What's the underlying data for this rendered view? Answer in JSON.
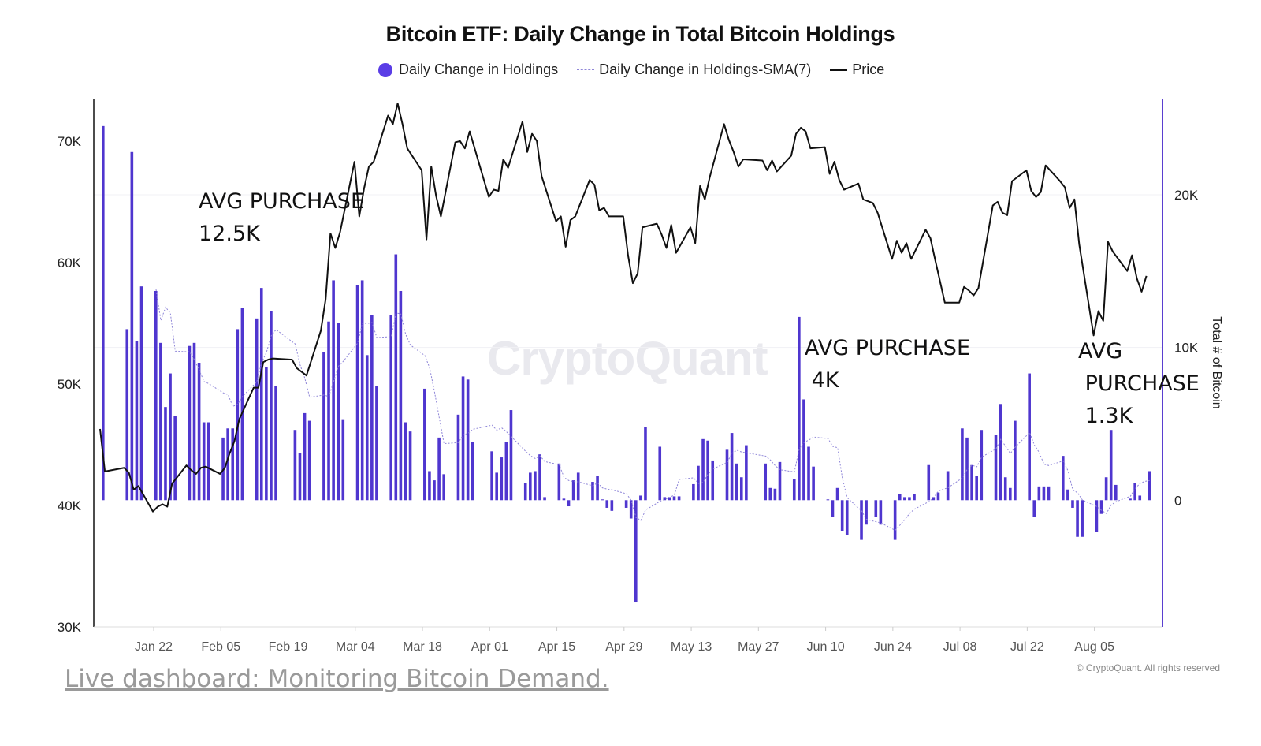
{
  "chart_data": {
    "type": "bar+line",
    "title": "Bitcoin ETF: Daily Change in Total Bitcoin Holdings",
    "legend": [
      "Daily Change in Holdings",
      "Daily Change in Holdings-SMA(7)",
      "Price"
    ],
    "legend_placement": "top-center",
    "right_axis_label": "Total # of Bitcoin",
    "watermark": "CryptoQuant",
    "copyright": "© CryptoQuant. All rights reserved",
    "colors": {
      "holdings": "#4f36cf",
      "sma": "#8f86d8",
      "price": "#111111",
      "right_axis": "#5a3fd0"
    },
    "left_axis": {
      "ylim": [
        30000,
        73500
      ],
      "ticks": [
        {
          "v": 30000,
          "label": "30K"
        },
        {
          "v": 40000,
          "label": "40K"
        },
        {
          "v": 50000,
          "label": "50K"
        },
        {
          "v": 60000,
          "label": "60K"
        },
        {
          "v": 70000,
          "label": "70K"
        }
      ]
    },
    "right_axis": {
      "ylim": [
        -8300,
        26300
      ],
      "ticks": [
        {
          "v": 0,
          "label": "0"
        },
        {
          "v": 10000,
          "label": "10K"
        },
        {
          "v": 20000,
          "label": "20K"
        }
      ]
    },
    "x_ticks": [
      {
        "label": "Jan 22",
        "date": "2024-01-22"
      },
      {
        "label": "Feb 05",
        "date": "2024-02-05"
      },
      {
        "label": "Feb 19",
        "date": "2024-02-19"
      },
      {
        "label": "Mar 04",
        "date": "2024-03-04"
      },
      {
        "label": "Mar 18",
        "date": "2024-03-18"
      },
      {
        "label": "Apr 01",
        "date": "2024-04-01"
      },
      {
        "label": "Apr 15",
        "date": "2024-04-15"
      },
      {
        "label": "Apr 29",
        "date": "2024-04-29"
      },
      {
        "label": "May 13",
        "date": "2024-05-13"
      },
      {
        "label": "May 27",
        "date": "2024-05-27"
      },
      {
        "label": "Jun 10",
        "date": "2024-06-10"
      },
      {
        "label": "Jun 24",
        "date": "2024-06-24"
      },
      {
        "label": "Jul 08",
        "date": "2024-07-08"
      },
      {
        "label": "Jul 22",
        "date": "2024-07-22"
      },
      {
        "label": "Aug 05",
        "date": "2024-08-05"
      }
    ],
    "dates": [
      "2024-01-11",
      "2024-01-12",
      "2024-01-16",
      "2024-01-17",
      "2024-01-18",
      "2024-01-19",
      "2024-01-22",
      "2024-01-23",
      "2024-01-24",
      "2024-01-25",
      "2024-01-26",
      "2024-01-29",
      "2024-01-30",
      "2024-01-31",
      "2024-02-01",
      "2024-02-02",
      "2024-02-05",
      "2024-02-06",
      "2024-02-07",
      "2024-02-08",
      "2024-02-09",
      "2024-02-12",
      "2024-02-13",
      "2024-02-14",
      "2024-02-15",
      "2024-02-16",
      "2024-02-20",
      "2024-02-21",
      "2024-02-22",
      "2024-02-23",
      "2024-02-26",
      "2024-02-27",
      "2024-02-28",
      "2024-02-29",
      "2024-03-01",
      "2024-03-04",
      "2024-03-05",
      "2024-03-06",
      "2024-03-07",
      "2024-03-08",
      "2024-03-11",
      "2024-03-12",
      "2024-03-13",
      "2024-03-14",
      "2024-03-15",
      "2024-03-18",
      "2024-03-19",
      "2024-03-20",
      "2024-03-21",
      "2024-03-22",
      "2024-03-25",
      "2024-03-26",
      "2024-03-27",
      "2024-03-28",
      "2024-04-01",
      "2024-04-02",
      "2024-04-03",
      "2024-04-04",
      "2024-04-05",
      "2024-04-08",
      "2024-04-09",
      "2024-04-10",
      "2024-04-11",
      "2024-04-12",
      "2024-04-15",
      "2024-04-16",
      "2024-04-17",
      "2024-04-18",
      "2024-04-19",
      "2024-04-22",
      "2024-04-23",
      "2024-04-24",
      "2024-04-25",
      "2024-04-26",
      "2024-04-29",
      "2024-04-30",
      "2024-05-01",
      "2024-05-02",
      "2024-05-03",
      "2024-05-06",
      "2024-05-07",
      "2024-05-08",
      "2024-05-09",
      "2024-05-10",
      "2024-05-13",
      "2024-05-14",
      "2024-05-15",
      "2024-05-16",
      "2024-05-17",
      "2024-05-20",
      "2024-05-21",
      "2024-05-22",
      "2024-05-23",
      "2024-05-24",
      "2024-05-28",
      "2024-05-29",
      "2024-05-30",
      "2024-05-31",
      "2024-06-03",
      "2024-06-04",
      "2024-06-05",
      "2024-06-06",
      "2024-06-07",
      "2024-06-10",
      "2024-06-11",
      "2024-06-12",
      "2024-06-13",
      "2024-06-14",
      "2024-06-17",
      "2024-06-18",
      "2024-06-20",
      "2024-06-21",
      "2024-06-24",
      "2024-06-25",
      "2024-06-26",
      "2024-06-27",
      "2024-06-28",
      "2024-07-01",
      "2024-07-02",
      "2024-07-03",
      "2024-07-05",
      "2024-07-08",
      "2024-07-09",
      "2024-07-10",
      "2024-07-11",
      "2024-07-12",
      "2024-07-15",
      "2024-07-16",
      "2024-07-17",
      "2024-07-18",
      "2024-07-19",
      "2024-07-22",
      "2024-07-23",
      "2024-07-24",
      "2024-07-25",
      "2024-07-26",
      "2024-07-29",
      "2024-07-30",
      "2024-07-31",
      "2024-08-01",
      "2024-08-02",
      "2024-08-05",
      "2024-08-06",
      "2024-08-07",
      "2024-08-08",
      "2024-08-09",
      "2024-08-12",
      "2024-08-13",
      "2024-08-14",
      "2024-08-15",
      "2024-08-16"
    ],
    "series": [
      {
        "name": "Daily Change in Holdings",
        "axis": "right",
        "type": "bar",
        "values": [
          24500,
          0,
          11200,
          22800,
          10400,
          14000,
          13700,
          10300,
          6100,
          8300,
          5500,
          10100,
          10300,
          9000,
          5100,
          5100,
          4100,
          4700,
          4700,
          11200,
          12600,
          11900,
          13900,
          8700,
          12400,
          7500,
          4600,
          3100,
          5700,
          5200,
          9700,
          11700,
          14400,
          11600,
          5300,
          14100,
          14400,
          9500,
          12100,
          7500,
          12100,
          16100,
          13700,
          5100,
          4500,
          7300,
          1900,
          1300,
          4100,
          1700,
          5600,
          8100,
          7900,
          3800,
          3200,
          1800,
          2800,
          3800,
          5900,
          1100,
          1800,
          1900,
          3000,
          200,
          2400,
          100,
          -400,
          1300,
          1800,
          1200,
          1600,
          50,
          -500,
          -700,
          -500,
          -1200,
          -6700,
          300,
          4800,
          3500,
          200,
          200,
          250,
          250,
          1050,
          2250,
          4000,
          3900,
          2600,
          3300,
          4400,
          2400,
          1500,
          3600,
          2400,
          800,
          750,
          2500,
          1400,
          12000,
          6600,
          3500,
          2200,
          50,
          -1100,
          800,
          -2000,
          -2300,
          -2600,
          -1600,
          -1100,
          -1600,
          -2600,
          400,
          200,
          200,
          400,
          2300,
          200,
          500,
          1900,
          4700,
          4100,
          2300,
          1600,
          4600,
          4300,
          6300,
          1500,
          800,
          5200,
          8300,
          -1100,
          900,
          900,
          900,
          2900,
          700,
          -500,
          -2400,
          -2400,
          -2100,
          -900,
          1500,
          4600,
          1000,
          100,
          1100,
          300,
          0,
          1900
        ]
      },
      {
        "name": "Daily Change in Holdings-SMA(7)",
        "axis": "right",
        "type": "line",
        "window": 7
      },
      {
        "name": "Price",
        "axis": "left",
        "type": "line",
        "values": [
          46300,
          42800,
          43100,
          42700,
          41300,
          41600,
          39500,
          39900,
          40100,
          39900,
          41800,
          43300,
          42900,
          42600,
          43100,
          43200,
          42600,
          43100,
          44300,
          45300,
          47100,
          49700,
          49700,
          51800,
          52000,
          52100,
          52000,
          51300,
          51000,
          50700,
          54400,
          57000,
          62400,
          61200,
          62500,
          68300,
          63800,
          66100,
          67900,
          68300,
          72100,
          71400,
          73100,
          71400,
          69400,
          67600,
          61900,
          67900,
          65500,
          63800,
          69900,
          70000,
          69400,
          70800,
          65400,
          66000,
          65900,
          68500,
          67800,
          71600,
          69100,
          70600,
          70000,
          67100,
          63400,
          63800,
          61300,
          63500,
          63800,
          66800,
          66400,
          64300,
          64500,
          63800,
          63800,
          60600,
          58300,
          59100,
          62900,
          63200,
          62300,
          61200,
          63100,
          60800,
          62900,
          61600,
          66300,
          65200,
          67000,
          71400,
          70100,
          69100,
          67900,
          68500,
          68400,
          67600,
          68400,
          67500,
          68800,
          70600,
          71100,
          70800,
          69400,
          69500,
          67300,
          68300,
          66800,
          66000,
          66500,
          65200,
          64900,
          64100,
          60300,
          61800,
          60800,
          61600,
          60300,
          62700,
          62000,
          60200,
          56700,
          56700,
          58000,
          57700,
          57300,
          57900,
          64700,
          65000,
          64100,
          63900,
          66700,
          67600,
          65900,
          65400,
          65800,
          68000,
          66700,
          66200,
          64500,
          65200,
          61500,
          54000,
          56000,
          55200,
          61700,
          60900,
          59300,
          60600,
          58700,
          57600,
          58900
        ]
      }
    ]
  },
  "annotations": [
    "AVG PURCHASE\n12.5K",
    "AVG PURCHASE\n 4K",
    "AVG\n PURCHASE\n 1.3K"
  ],
  "footer": {
    "link_text": "Live dashboard: Monitoring Bitcoin Demand."
  }
}
